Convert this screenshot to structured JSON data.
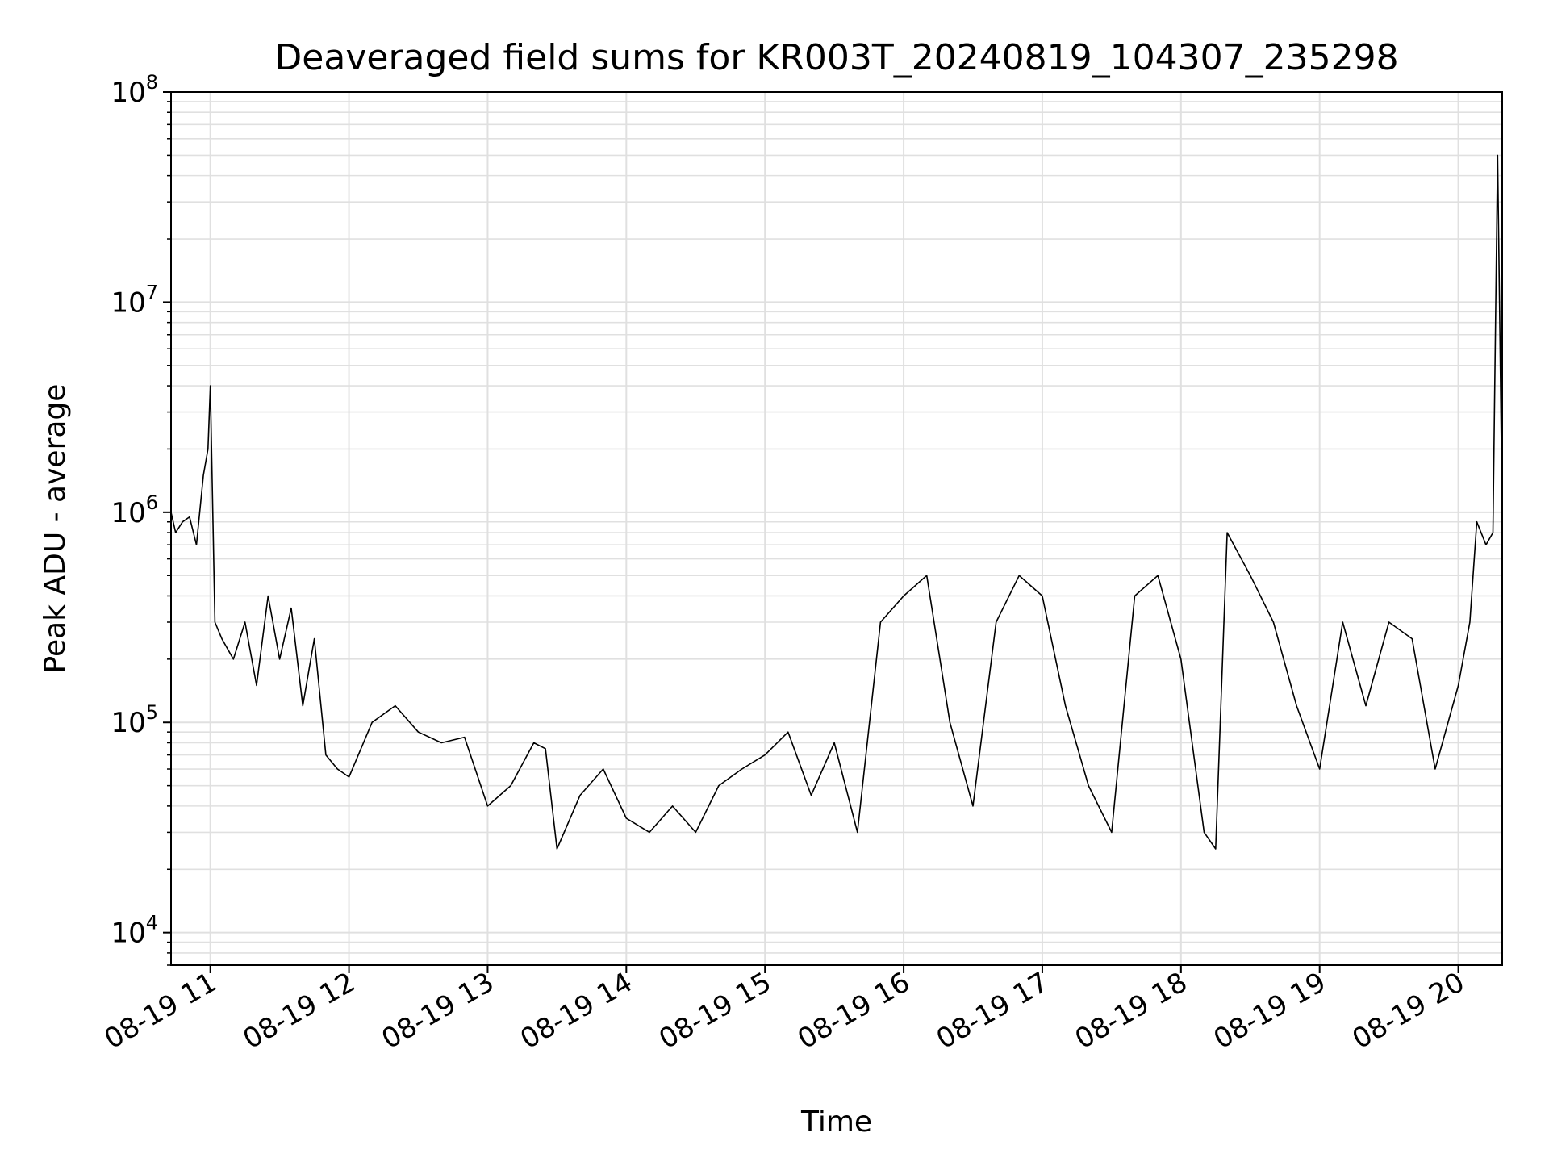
{
  "chart_data": {
    "type": "line",
    "title": "Deaveraged field sums for KR003T_20240819_104307_235298",
    "xlabel": "Time",
    "ylabel": "Peak ADU - average",
    "yscale": "log",
    "ylim": [
      7000,
      100000000
    ],
    "xlim": [
      "2024-08-19 10:43",
      "2024-08-19 20:19"
    ],
    "grid": true,
    "colors": {
      "line": "#000000",
      "grid": "#e0e0e0",
      "axes": "#000000"
    },
    "x_tick_labels": [
      "08-19 11",
      "08-19 12",
      "08-19 13",
      "08-19 14",
      "08-19 15",
      "08-19 16",
      "08-19 17",
      "08-19 18",
      "08-19 19",
      "08-19 20"
    ],
    "x_tick_values": [
      "2024-08-19 11:00",
      "2024-08-19 12:00",
      "2024-08-19 13:00",
      "2024-08-19 14:00",
      "2024-08-19 15:00",
      "2024-08-19 16:00",
      "2024-08-19 17:00",
      "2024-08-19 18:00",
      "2024-08-19 19:00",
      "2024-08-19 20:00"
    ],
    "y_tick_labels": [
      {
        "base": "10",
        "exp": "4",
        "value": 10000
      },
      {
        "base": "10",
        "exp": "5",
        "value": 100000
      },
      {
        "base": "10",
        "exp": "6",
        "value": 1000000
      },
      {
        "base": "10",
        "exp": "7",
        "value": 10000000
      },
      {
        "base": "10",
        "exp": "8",
        "value": 100000000
      }
    ],
    "series": [
      {
        "x": [
          "2024-08-19 10:43",
          "2024-08-19 10:45",
          "2024-08-19 10:48",
          "2024-08-19 10:51",
          "2024-08-19 10:54",
          "2024-08-19 10:57",
          "2024-08-19 10:59",
          "2024-08-19 11:00",
          "2024-08-19 11:02",
          "2024-08-19 11:05",
          "2024-08-19 11:10",
          "2024-08-19 11:15",
          "2024-08-19 11:20",
          "2024-08-19 11:25",
          "2024-08-19 11:30",
          "2024-08-19 11:35",
          "2024-08-19 11:40",
          "2024-08-19 11:45",
          "2024-08-19 11:50",
          "2024-08-19 11:55",
          "2024-08-19 12:00",
          "2024-08-19 12:10",
          "2024-08-19 12:20",
          "2024-08-19 12:30",
          "2024-08-19 12:40",
          "2024-08-19 12:50",
          "2024-08-19 13:00",
          "2024-08-19 13:10",
          "2024-08-19 13:20",
          "2024-08-19 13:25",
          "2024-08-19 13:30",
          "2024-08-19 13:40",
          "2024-08-19 13:50",
          "2024-08-19 14:00",
          "2024-08-19 14:10",
          "2024-08-19 14:20",
          "2024-08-19 14:30",
          "2024-08-19 14:40",
          "2024-08-19 14:50",
          "2024-08-19 15:00",
          "2024-08-19 15:10",
          "2024-08-19 15:20",
          "2024-08-19 15:30",
          "2024-08-19 15:40",
          "2024-08-19 15:50",
          "2024-08-19 16:00",
          "2024-08-19 16:10",
          "2024-08-19 16:20",
          "2024-08-19 16:30",
          "2024-08-19 16:40",
          "2024-08-19 16:50",
          "2024-08-19 17:00",
          "2024-08-19 17:10",
          "2024-08-19 17:20",
          "2024-08-19 17:30",
          "2024-08-19 17:40",
          "2024-08-19 17:50",
          "2024-08-19 18:00",
          "2024-08-19 18:10",
          "2024-08-19 18:15",
          "2024-08-19 18:20",
          "2024-08-19 18:30",
          "2024-08-19 18:40",
          "2024-08-19 18:50",
          "2024-08-19 19:00",
          "2024-08-19 19:10",
          "2024-08-19 19:20",
          "2024-08-19 19:30",
          "2024-08-19 19:40",
          "2024-08-19 19:50",
          "2024-08-19 20:00",
          "2024-08-19 20:05",
          "2024-08-19 20:08",
          "2024-08-19 20:12",
          "2024-08-19 20:15",
          "2024-08-19 20:17",
          "2024-08-19 20:19"
        ],
        "y": [
          1000000,
          800000,
          900000,
          950000,
          700000,
          1500000,
          2000000,
          4000000,
          300000,
          250000,
          200000,
          300000,
          150000,
          400000,
          200000,
          350000,
          120000,
          250000,
          70000,
          60000,
          55000,
          100000,
          120000,
          90000,
          80000,
          85000,
          40000,
          50000,
          80000,
          75000,
          25000,
          45000,
          60000,
          35000,
          30000,
          40000,
          30000,
          50000,
          60000,
          70000,
          90000,
          45000,
          80000,
          30000,
          300000,
          400000,
          500000,
          100000,
          40000,
          300000,
          500000,
          400000,
          120000,
          50000,
          30000,
          400000,
          500000,
          200000,
          30000,
          25000,
          800000,
          500000,
          300000,
          120000,
          60000,
          300000,
          120000,
          300000,
          250000,
          60000,
          150000,
          300000,
          900000,
          700000,
          800000,
          50000000,
          1000000
        ]
      }
    ]
  }
}
